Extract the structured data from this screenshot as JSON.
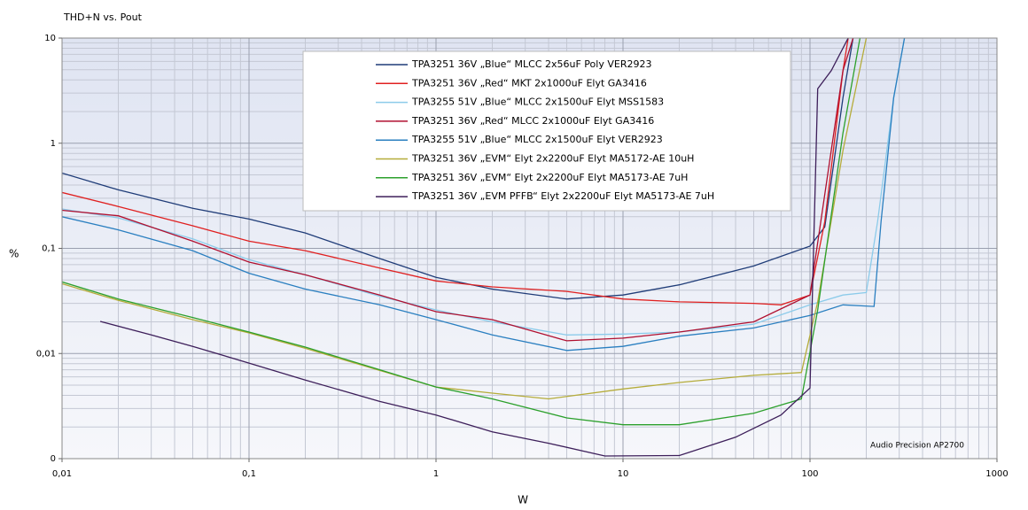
{
  "chart_data": {
    "type": "line",
    "title": "THD+N vs. Pout",
    "xlabel": "W",
    "ylabel": "%",
    "annotation": "Audio Precision AP2700",
    "xscale": "log",
    "yscale": "log",
    "grid": true,
    "minor_grid": true,
    "legend": "top",
    "xlim": [
      0.01,
      1000
    ],
    "ylim": [
      0.001,
      10
    ],
    "xticks": [
      {
        "value": 0.01,
        "label": "0,01"
      },
      {
        "value": 0.1,
        "label": "0,1"
      },
      1,
      10,
      100,
      1000
    ],
    "yticks": [
      {
        "value": 0.001,
        "label": "0"
      },
      {
        "value": 0.01,
        "label": "0,01"
      },
      {
        "value": 0.1,
        "label": "0,1"
      },
      1,
      10
    ],
    "series": [
      {
        "name": "TPA3251 36V „Blue“ MLCC 2x56uF Poly VER2923",
        "color": "#1f3c78",
        "x": [
          0.01,
          0.02,
          0.05,
          0.1,
          0.2,
          0.5,
          1,
          2,
          5,
          10,
          20,
          50,
          100,
          120,
          150,
          170
        ],
        "values": [
          0.52,
          0.36,
          0.24,
          0.19,
          0.14,
          0.08,
          0.053,
          0.041,
          0.033,
          0.036,
          0.045,
          0.068,
          0.105,
          0.16,
          2.7,
          10
        ]
      },
      {
        "name": "TPA3251 36V „Red“ MKT 2x1000uF Elyt GA3416",
        "color": "#e02020",
        "x": [
          0.01,
          0.02,
          0.05,
          0.1,
          0.2,
          0.5,
          1,
          2,
          5,
          10,
          20,
          50,
          70,
          100,
          120,
          150,
          160
        ],
        "values": [
          0.34,
          0.25,
          0.164,
          0.117,
          0.095,
          0.065,
          0.049,
          0.043,
          0.039,
          0.033,
          0.031,
          0.03,
          0.029,
          0.036,
          0.18,
          4.9,
          10
        ]
      },
      {
        "name": "TPA3255 51V „Blue“ MLCC 2x1500uF Elyt MSS1583",
        "color": "#8ccbea",
        "x": [
          0.01,
          0.02,
          0.05,
          0.1,
          0.2,
          0.5,
          1,
          2,
          5,
          10,
          20,
          50,
          100,
          150,
          200,
          230,
          280,
          320
        ],
        "values": [
          0.237,
          0.195,
          0.123,
          0.078,
          0.056,
          0.035,
          0.026,
          0.02,
          0.015,
          0.0153,
          0.016,
          0.019,
          0.029,
          0.036,
          0.038,
          0.18,
          2.7,
          10
        ]
      },
      {
        "name": "TPA3251 36V „Red“ MLCC 2x1000uF Elyt GA3416",
        "color": "#b01030",
        "x": [
          0.01,
          0.02,
          0.05,
          0.1,
          0.2,
          0.5,
          1,
          2,
          5,
          10,
          20,
          50,
          100,
          150,
          170
        ],
        "values": [
          0.23,
          0.204,
          0.117,
          0.074,
          0.056,
          0.036,
          0.025,
          0.021,
          0.0132,
          0.014,
          0.016,
          0.02,
          0.036,
          4.9,
          10
        ]
      },
      {
        "name": "TPA3255 51V „Blue“ MLCC 2x1500uF Elyt VER2923",
        "color": "#2a7fc0",
        "x": [
          0.01,
          0.02,
          0.05,
          0.1,
          0.2,
          0.5,
          1,
          2,
          5,
          10,
          20,
          50,
          100,
          150,
          220,
          240,
          280,
          320
        ],
        "values": [
          0.2,
          0.15,
          0.095,
          0.058,
          0.041,
          0.029,
          0.021,
          0.015,
          0.0107,
          0.0117,
          0.0146,
          0.0175,
          0.023,
          0.029,
          0.028,
          0.18,
          2.7,
          10
        ]
      },
      {
        "name": "TPA3251 36V „EVM“ Elyt 2x2200uF Elyt MA5172-AE 10uH",
        "color": "#b5ac3a",
        "x": [
          0.01,
          0.02,
          0.05,
          0.1,
          0.2,
          0.5,
          1,
          2,
          4,
          10,
          20,
          50,
          90,
          110,
          150,
          200
        ],
        "values": [
          0.046,
          0.032,
          0.021,
          0.0157,
          0.0112,
          0.0069,
          0.0048,
          0.0042,
          0.0037,
          0.0046,
          0.0053,
          0.0062,
          0.0066,
          0.031,
          0.85,
          10
        ]
      },
      {
        "name": "TPA3251 36V „EVM“ Elyt 2x2200uF Elyt MA5173-AE 7uH",
        "color": "#2ca02c",
        "x": [
          0.01,
          0.02,
          0.05,
          0.1,
          0.2,
          0.5,
          1,
          2,
          5,
          10,
          20,
          50,
          90,
          110,
          150,
          185
        ],
        "values": [
          0.048,
          0.033,
          0.022,
          0.016,
          0.0115,
          0.007,
          0.0048,
          0.0037,
          0.00244,
          0.0021,
          0.0021,
          0.0027,
          0.0037,
          0.026,
          1.25,
          10
        ]
      },
      {
        "name": "TPA3251 36V „EVM PFFB“ Elyt 2x2200uF Elyt MA5173-AE 7uH",
        "color": "#3d1f5a",
        "x": [
          0.016,
          0.03,
          0.05,
          0.1,
          0.2,
          0.5,
          1,
          2,
          4,
          8,
          20,
          40,
          70,
          100,
          110,
          130,
          160
        ],
        "values": [
          0.0202,
          0.015,
          0.0117,
          0.0081,
          0.0056,
          0.0035,
          0.0026,
          0.0018,
          0.0014,
          0.00106,
          0.00107,
          0.0016,
          0.0026,
          0.0047,
          3.3,
          4.9,
          10
        ]
      }
    ]
  }
}
